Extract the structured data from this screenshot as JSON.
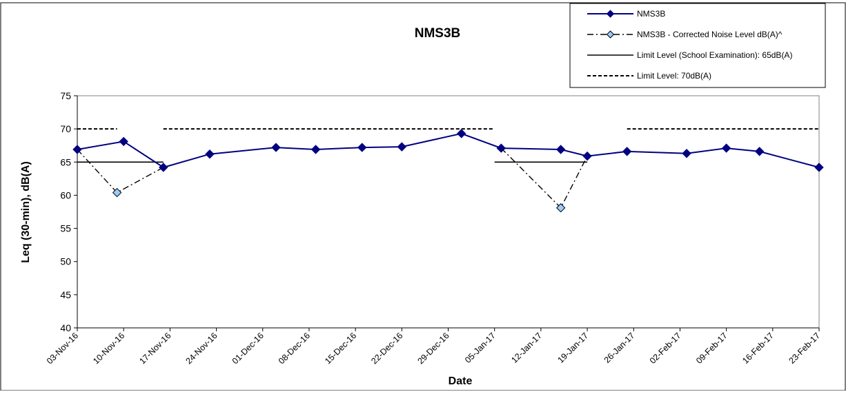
{
  "chart_data": {
    "type": "line",
    "title": "NMS3B",
    "xlabel": "Date",
    "ylabel": "Leq (30-min), dB(A)",
    "ylim": [
      40,
      75
    ],
    "yticks": [
      "40",
      "45",
      "50",
      "55",
      "60",
      "65",
      "70",
      "75"
    ],
    "xlim": [
      "2016-11-03",
      "2017-02-23"
    ],
    "xticks": [
      {
        "date": "2016-11-03",
        "label": "03-Nov-16"
      },
      {
        "date": "2016-11-10",
        "label": "10-Nov-16"
      },
      {
        "date": "2016-11-17",
        "label": "17-Nov-16"
      },
      {
        "date": "2016-11-24",
        "label": "24-Nov-16"
      },
      {
        "date": "2016-12-01",
        "label": "01-Dec-16"
      },
      {
        "date": "2016-12-08",
        "label": "08-Dec-16"
      },
      {
        "date": "2016-12-15",
        "label": "15-Dec-16"
      },
      {
        "date": "2016-12-22",
        "label": "22-Dec-16"
      },
      {
        "date": "2016-12-29",
        "label": "29-Dec-16"
      },
      {
        "date": "2017-01-05",
        "label": "05-Jan-17"
      },
      {
        "date": "2017-01-12",
        "label": "12-Jan-17"
      },
      {
        "date": "2017-01-19",
        "label": "19-Jan-17"
      },
      {
        "date": "2017-01-26",
        "label": "26-Jan-17"
      },
      {
        "date": "2017-02-02",
        "label": "02-Feb-17"
      },
      {
        "date": "2017-02-09",
        "label": "09-Feb-17"
      },
      {
        "date": "2017-02-16",
        "label": "16-Feb-17"
      },
      {
        "date": "2017-02-23",
        "label": "23-Feb-17"
      }
    ],
    "grid": false,
    "legend_position": "top-right",
    "colors": {
      "measured": "#000080",
      "corrected_marker": "#99ccff",
      "limit": "#000000"
    },
    "series": [
      {
        "name": "NMS3B",
        "style": "solid-diamond",
        "points": [
          {
            "x": "2016-11-03",
            "y": 66.9
          },
          {
            "x": "2016-11-10",
            "y": 68.1
          },
          {
            "x": "2016-11-16",
            "y": 64.2
          },
          {
            "x": "2016-11-23",
            "y": 66.2
          },
          {
            "x": "2016-12-03",
            "y": 67.2
          },
          {
            "x": "2016-12-09",
            "y": 66.9
          },
          {
            "x": "2016-12-16",
            "y": 67.2
          },
          {
            "x": "2016-12-22",
            "y": 67.3
          },
          {
            "x": "2016-12-31",
            "y": 69.3
          },
          {
            "x": "2017-01-06",
            "y": 67.1
          },
          {
            "x": "2017-01-15",
            "y": 66.9
          },
          {
            "x": "2017-01-19",
            "y": 65.9
          },
          {
            "x": "2017-01-25",
            "y": 66.6
          },
          {
            "x": "2017-02-03",
            "y": 66.3
          },
          {
            "x": "2017-02-09",
            "y": 67.1
          },
          {
            "x": "2017-02-14",
            "y": 66.6
          },
          {
            "x": "2017-02-23",
            "y": 64.2
          }
        ]
      },
      {
        "name": "NMS3B - Corrected Noise Level dB(A)^",
        "style": "dashdot-diamond",
        "segments": [
          [
            {
              "x": "2016-11-03",
              "y": 66.9
            },
            {
              "x": "2016-11-09",
              "y": 60.4,
              "marker": true
            },
            {
              "x": "2016-11-16",
              "y": 64.2
            }
          ],
          [
            {
              "x": "2017-01-06",
              "y": 67.1
            },
            {
              "x": "2017-01-15",
              "y": 58.1,
              "marker": true
            },
            {
              "x": "2017-01-19",
              "y": 65.9
            }
          ]
        ]
      },
      {
        "name": "Limit Level (School Examination): 65dB(A)",
        "style": "solid",
        "segments": [
          [
            {
              "x": "2016-11-03",
              "y": 65
            },
            {
              "x": "2016-11-16",
              "y": 65
            }
          ],
          [
            {
              "x": "2017-01-05",
              "y": 65
            },
            {
              "x": "2017-01-19",
              "y": 65
            }
          ]
        ]
      },
      {
        "name": "Limit Level: 70dB(A)",
        "style": "dashed",
        "segments": [
          [
            {
              "x": "2016-11-03",
              "y": 70
            },
            {
              "x": "2016-11-09",
              "y": 70
            }
          ],
          [
            {
              "x": "2016-11-16",
              "y": 70
            },
            {
              "x": "2017-01-05",
              "y": 70
            }
          ],
          [
            {
              "x": "2017-01-25",
              "y": 70
            },
            {
              "x": "2017-02-23",
              "y": 70
            }
          ]
        ]
      }
    ]
  }
}
